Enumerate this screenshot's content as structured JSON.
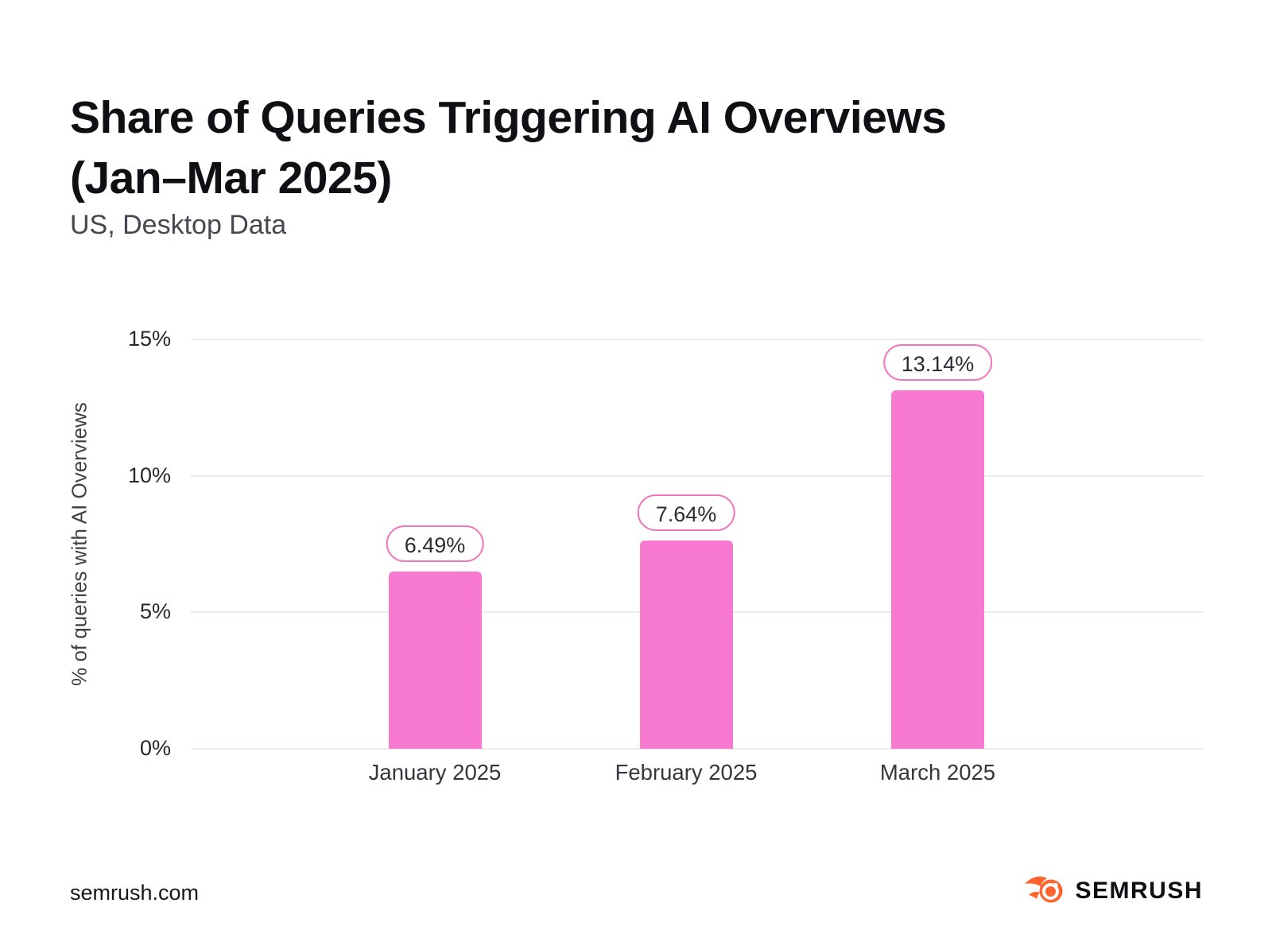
{
  "header": {
    "title_line1": "Share of Queries Triggering AI Overviews",
    "title_line2": "(Jan–Mar 2025)",
    "subtitle": "US, Desktop Data"
  },
  "chart_data": {
    "type": "bar",
    "title": "Share of Queries Triggering AI Overviews (Jan–Mar 2025)",
    "subtitle": "US, Desktop Data",
    "categories": [
      "January 2025",
      "February 2025",
      "March 2025"
    ],
    "values": [
      6.49,
      7.64,
      13.14
    ],
    "value_labels": [
      "6.49%",
      "7.64%",
      "13.14%"
    ],
    "xlabel": "",
    "ylabel": "% of queries with AI Overviews",
    "ylim": [
      0,
      15
    ],
    "yticks": [
      0,
      5,
      10,
      15
    ],
    "ytick_labels": [
      "0%",
      "5%",
      "10%",
      "15%"
    ],
    "grid": "horizontal",
    "legend": "none",
    "bar_color": "#f87ad0",
    "value_pill_border_color": "#ef77be",
    "gridline_color": "#e8ebef"
  },
  "footer": {
    "source": "semrush.com",
    "brand": "SEMRUSH",
    "brand_icon": "semrush-fireball-icon",
    "brand_icon_color": "#ff642d"
  }
}
